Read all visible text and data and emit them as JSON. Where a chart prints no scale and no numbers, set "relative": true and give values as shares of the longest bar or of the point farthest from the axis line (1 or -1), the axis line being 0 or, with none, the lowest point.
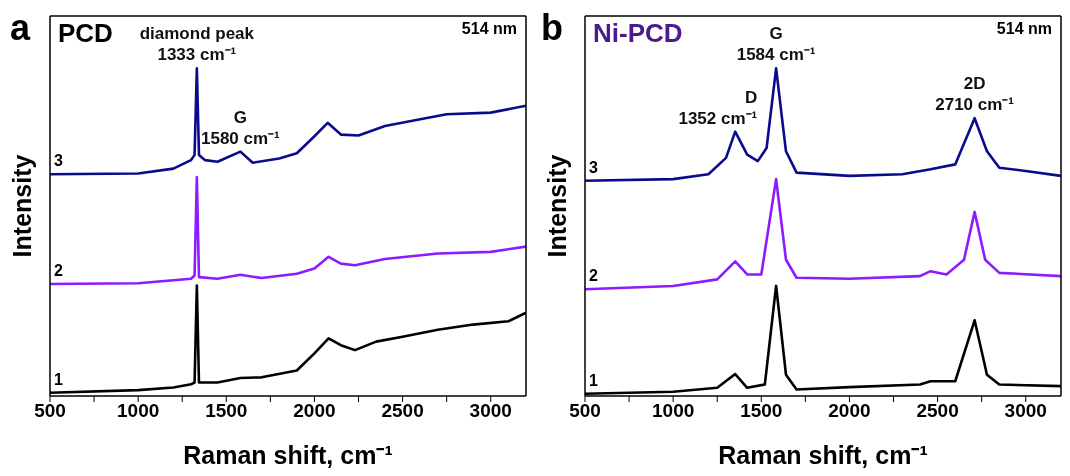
{
  "chart_data": [
    {
      "type": "line",
      "title": "PCD",
      "xlabel": "Raman shift, cm⁻¹",
      "ylabel": "Intensity",
      "relative": true,
      "xlim": [
        500,
        3200
      ],
      "xticks": [
        500,
        {
          "value": 750,
          "label": null
        },
        1000,
        {
          "value": 1250,
          "label": null
        },
        1500,
        {
          "value": 1750,
          "label": null
        },
        2000,
        {
          "value": 2250,
          "label": null
        },
        2500,
        {
          "value": 2750,
          "label": null
        },
        3000
      ],
      "annotations": [
        "a",
        "514 nm",
        {
          "text": "diamond peak\n1333 cm⁻¹",
          "x": 1333,
          "y": 1.0
        },
        {
          "text": "G\n1580 cm⁻¹",
          "x": 1580,
          "y": 0.746
        }
      ],
      "series": [
        {
          "name": "1",
          "color": "#000000",
          "x": [
            500,
            1000,
            1200,
            1300,
            1320,
            1333,
            1345,
            1450,
            1580,
            1700,
            1900,
            2000,
            2080,
            2150,
            2230,
            2350,
            2500,
            2700,
            2900,
            3100,
            3200
          ],
          "values": [
            0.01,
            0.018,
            0.026,
            0.036,
            0.041,
            0.337,
            0.041,
            0.041,
            0.055,
            0.057,
            0.078,
            0.13,
            0.176,
            0.155,
            0.14,
            0.166,
            0.181,
            0.202,
            0.218,
            0.228,
            0.254
          ]
        },
        {
          "name": "2",
          "color": "#8c1cff",
          "x": [
            500,
            1000,
            1300,
            1320,
            1333,
            1345,
            1450,
            1580,
            1700,
            1900,
            2000,
            2080,
            2150,
            2230,
            2400,
            2700,
            3000,
            3200
          ],
          "values": [
            0.342,
            0.344,
            0.358,
            0.368,
            0.668,
            0.363,
            0.358,
            0.37,
            0.36,
            0.373,
            0.389,
            0.425,
            0.404,
            0.399,
            0.418,
            0.435,
            0.44,
            0.456
          ]
        },
        {
          "name": "3",
          "color": "#0a0a8c",
          "x": [
            500,
            1000,
            1200,
            1300,
            1320,
            1333,
            1345,
            1380,
            1450,
            1580,
            1650,
            1800,
            1900,
            2000,
            2075,
            2150,
            2250,
            2400,
            2600,
            2750,
            3000,
            3200
          ],
          "values": [
            0.677,
            0.679,
            0.694,
            0.72,
            0.736,
            1.0,
            0.736,
            0.72,
            0.715,
            0.746,
            0.712,
            0.725,
            0.741,
            0.793,
            0.834,
            0.798,
            0.795,
            0.824,
            0.845,
            0.86,
            0.865,
            0.886
          ]
        }
      ]
    },
    {
      "type": "line",
      "title": "Ni-PCD",
      "xlabel": "Raman shift, cm⁻¹",
      "ylabel": "Intensity",
      "relative": true,
      "xlim": [
        500,
        3200
      ],
      "xticks": [
        500,
        {
          "value": 750,
          "label": null
        },
        1000,
        {
          "value": 1250,
          "label": null
        },
        1500,
        {
          "value": 1750,
          "label": null
        },
        2000,
        {
          "value": 2250,
          "label": null
        },
        2500,
        {
          "value": 2750,
          "label": null
        },
        3000
      ],
      "annotations": [
        "b",
        "514 nm",
        {
          "text": "D\n1352 cm⁻¹",
          "x": 1352,
          "y": 0.807
        },
        {
          "text": "G\n1584 cm⁻¹",
          "x": 1584,
          "y": 1.0
        },
        {
          "text": "2D\n2710 cm⁻¹",
          "x": 2710,
          "y": 0.848
        }
      ],
      "series": [
        {
          "name": "1",
          "color": "#000000",
          "x": [
            500,
            1000,
            1250,
            1352,
            1420,
            1520,
            1584,
            1640,
            1700,
            2000,
            2400,
            2460,
            2600,
            2710,
            2780,
            2850,
            3200
          ],
          "values": [
            0.007,
            0.013,
            0.025,
            0.067,
            0.025,
            0.035,
            0.336,
            0.065,
            0.02,
            0.027,
            0.035,
            0.045,
            0.045,
            0.231,
            0.065,
            0.035,
            0.03
          ]
        },
        {
          "name": "2",
          "color": "#8c1cff",
          "x": [
            500,
            1000,
            1250,
            1352,
            1420,
            1500,
            1584,
            1640,
            1700,
            2000,
            2400,
            2460,
            2550,
            2650,
            2710,
            2770,
            2850,
            3200
          ],
          "values": [
            0.326,
            0.336,
            0.356,
            0.411,
            0.371,
            0.371,
            0.662,
            0.416,
            0.361,
            0.358,
            0.366,
            0.381,
            0.371,
            0.416,
            0.562,
            0.416,
            0.376,
            0.366
          ]
        },
        {
          "name": "3",
          "color": "#0a0a8c",
          "x": [
            500,
            1000,
            1200,
            1300,
            1352,
            1420,
            1480,
            1530,
            1584,
            1640,
            1700,
            2000,
            2300,
            2460,
            2600,
            2710,
            2780,
            2850,
            3000,
            3200
          ],
          "values": [
            0.657,
            0.662,
            0.677,
            0.727,
            0.807,
            0.737,
            0.717,
            0.757,
            1.0,
            0.747,
            0.682,
            0.672,
            0.677,
            0.692,
            0.707,
            0.848,
            0.747,
            0.697,
            0.687,
            0.672
          ]
        }
      ]
    }
  ]
}
